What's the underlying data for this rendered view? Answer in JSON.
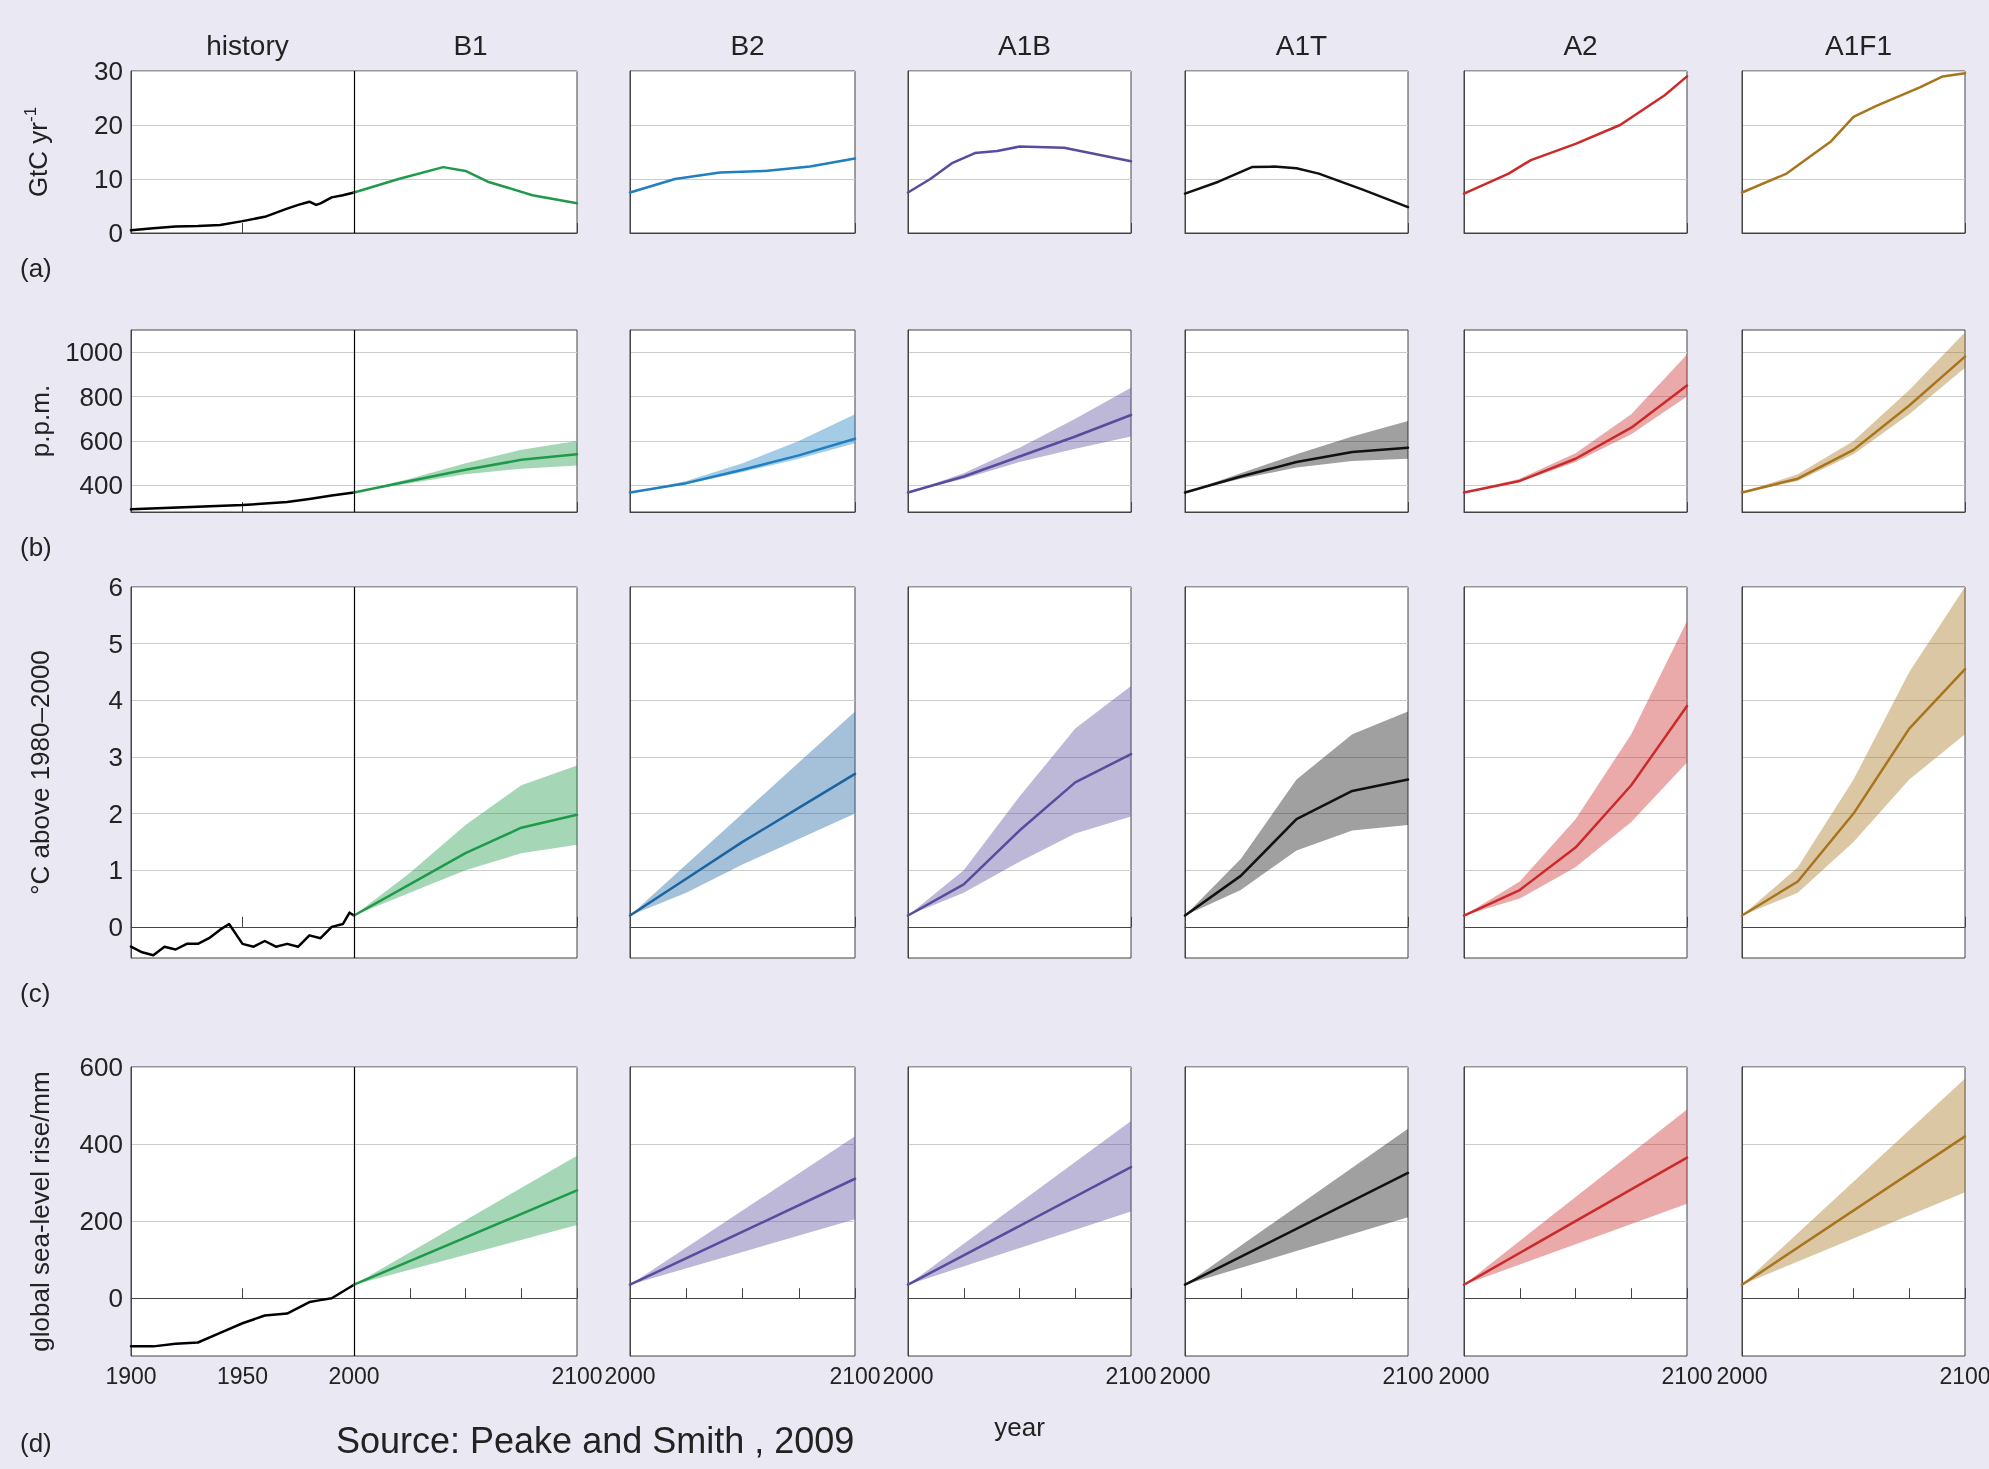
{
  "chart_data": [
    {
      "type": "line",
      "title": "history",
      "subtitle": "B1",
      "ylabel": "GtC yr$^{-1}$",
      "annotations": [
        "(a)"
      ],
      "xlim": [
        1900,
        2100
      ],
      "xticks": [
        1900,
        1950,
        2000,
        2100
      ],
      "ylim": [
        0,
        30
      ],
      "yticks": [
        0,
        10,
        20,
        30
      ],
      "tick_labels": "y",
      "grid": "y",
      "ref_lines": [
        {
          "axis": "x",
          "value": 2000,
          "color": "#000000"
        }
      ],
      "series": [
        {
          "color": "#000000",
          "x": [
            1900,
            1910,
            1920,
            1930,
            1940,
            1950,
            1960,
            1970,
            1975,
            1980,
            1983,
            1985,
            1990,
            1995,
            2000
          ],
          "values": [
            0.5,
            0.9,
            1.2,
            1.3,
            1.5,
            2.2,
            3,
            4.5,
            5.2,
            5.8,
            5.2,
            5.5,
            6.6,
            7,
            7.5
          ]
        },
        {
          "color": "#1f9a4a",
          "x": [
            2000,
            2020,
            2040,
            2050,
            2060,
            2080,
            2100
          ],
          "values": [
            7.5,
            10,
            12.2,
            11.5,
            9.5,
            7,
            5.5
          ]
        }
      ]
    },
    {
      "type": "line",
      "title": "B2",
      "xlim": [
        2000,
        2100
      ],
      "xticks": [
        2000,
        2100
      ],
      "ylim": [
        0,
        30
      ],
      "yticks": [
        0,
        10,
        20,
        30
      ],
      "tick_labels": false,
      "grid": "y",
      "series": [
        {
          "color": "#1f7fc0",
          "x": [
            2000,
            2020,
            2040,
            2060,
            2080,
            2100
          ],
          "values": [
            7.5,
            10,
            11.2,
            11.5,
            12.3,
            13.8
          ]
        }
      ]
    },
    {
      "type": "line",
      "title": "A1B",
      "xlim": [
        2000,
        2100
      ],
      "xticks": [
        2000,
        2100
      ],
      "ylim": [
        0,
        30
      ],
      "yticks": [
        0,
        10,
        20,
        30
      ],
      "tick_labels": false,
      "grid": "y",
      "series": [
        {
          "color": "#5b4a9e",
          "x": [
            2000,
            2010,
            2020,
            2030,
            2040,
            2050,
            2070,
            2100
          ],
          "values": [
            7.5,
            10,
            13,
            14.8,
            15.2,
            16,
            15.8,
            13.3
          ]
        }
      ]
    },
    {
      "type": "line",
      "title": "A1T",
      "xlim": [
        2000,
        2100
      ],
      "xticks": [
        2000,
        2100
      ],
      "ylim": [
        0,
        30
      ],
      "yticks": [
        0,
        10,
        20,
        30
      ],
      "tick_labels": false,
      "grid": "y",
      "series": [
        {
          "color": "#111111",
          "x": [
            2000,
            2015,
            2030,
            2040,
            2050,
            2060,
            2080,
            2100
          ],
          "values": [
            7.3,
            9.5,
            12.2,
            12.3,
            12,
            11,
            8,
            4.8
          ]
        }
      ]
    },
    {
      "type": "line",
      "title": "A2",
      "xlim": [
        2000,
        2100
      ],
      "xticks": [
        2000,
        2100
      ],
      "ylim": [
        0,
        30
      ],
      "yticks": [
        0,
        10,
        20,
        30
      ],
      "tick_labels": false,
      "grid": "y",
      "series": [
        {
          "color": "#cc2a2a",
          "x": [
            2000,
            2020,
            2030,
            2050,
            2070,
            2090,
            2100
          ],
          "values": [
            7.3,
            11,
            13.5,
            16.5,
            20,
            25.5,
            29
          ]
        }
      ]
    },
    {
      "type": "line",
      "title": "A1F1",
      "xlim": [
        2000,
        2100
      ],
      "xticks": [
        2000,
        2100
      ],
      "ylim": [
        0,
        30
      ],
      "yticks": [
        0,
        10,
        20,
        30
      ],
      "tick_labels": false,
      "grid": "y",
      "series": [
        {
          "color": "#a8741e",
          "x": [
            2000,
            2020,
            2040,
            2050,
            2060,
            2080,
            2090,
            2100
          ],
          "values": [
            7.5,
            11,
            17,
            21.5,
            23.5,
            27,
            29,
            29.6
          ]
        }
      ]
    },
    {
      "type": "line",
      "ylabel": "p.p.m.",
      "annotations": [
        "(b)"
      ],
      "xlim": [
        1900,
        2100
      ],
      "xticks": [
        1900,
        1950,
        2000,
        2100
      ],
      "ylim": [
        280,
        1100
      ],
      "yticks": [
        400,
        600,
        800,
        1000
      ],
      "tick_labels": "y",
      "grid": "y",
      "ref_lines": [
        {
          "axis": "x",
          "value": 2000,
          "color": "#000000"
        }
      ],
      "series": [
        {
          "color": "#000000",
          "x": [
            1900,
            1950,
            1970,
            1980,
            1990,
            2000
          ],
          "values": [
            292,
            311,
            325,
            339,
            354,
            368
          ]
        },
        {
          "color": "#1f9a4a",
          "x": [
            2000,
            2025,
            2050,
            2075,
            2100
          ],
          "values": [
            368,
            420,
            470,
            515,
            540
          ],
          "lower": [
            368,
            410,
            450,
            475,
            490
          ],
          "upper": [
            368,
            430,
            500,
            560,
            600
          ]
        }
      ]
    },
    {
      "type": "line",
      "xlim": [
        2000,
        2100
      ],
      "xticks": [
        2000,
        2100
      ],
      "ylim": [
        280,
        1100
      ],
      "yticks": [
        400,
        600,
        800,
        1000
      ],
      "tick_labels": false,
      "grid": "y",
      "series": [
        {
          "color": "#1f7fc0",
          "x": [
            2000,
            2025,
            2050,
            2075,
            2100
          ],
          "values": [
            368,
            410,
            470,
            535,
            610
          ],
          "lower": [
            368,
            405,
            460,
            520,
            590
          ],
          "upper": [
            368,
            420,
            500,
            600,
            720
          ]
        }
      ]
    },
    {
      "type": "line",
      "xlim": [
        2000,
        2100
      ],
      "xticks": [
        2000,
        2100
      ],
      "ylim": [
        280,
        1100
      ],
      "yticks": [
        400,
        600,
        800,
        1000
      ],
      "tick_labels": false,
      "grid": "y",
      "series": [
        {
          "color": "#5b4a9e",
          "x": [
            2000,
            2025,
            2050,
            2075,
            2100
          ],
          "values": [
            368,
            440,
            530,
            620,
            717
          ],
          "lower": [
            368,
            430,
            505,
            565,
            620
          ],
          "upper": [
            368,
            455,
            570,
            700,
            840
          ]
        }
      ]
    },
    {
      "type": "line",
      "xlim": [
        2000,
        2100
      ],
      "xticks": [
        2000,
        2100
      ],
      "ylim": [
        280,
        1100
      ],
      "yticks": [
        400,
        600,
        800,
        1000
      ],
      "tick_labels": false,
      "grid": "y",
      "series": [
        {
          "color": "#111111",
          "x": [
            2000,
            2025,
            2050,
            2075,
            2100
          ],
          "values": [
            368,
            440,
            505,
            550,
            570
          ],
          "lower": [
            368,
            430,
            480,
            510,
            520
          ],
          "upper": [
            368,
            455,
            540,
            620,
            690
          ]
        }
      ]
    },
    {
      "type": "line",
      "xlim": [
        2000,
        2100
      ],
      "xticks": [
        2000,
        2100
      ],
      "ylim": [
        280,
        1100
      ],
      "yticks": [
        400,
        600,
        800,
        1000
      ],
      "tick_labels": false,
      "grid": "y",
      "series": [
        {
          "color": "#cc2a2a",
          "x": [
            2000,
            2025,
            2050,
            2075,
            2100
          ],
          "values": [
            368,
            420,
            520,
            660,
            850
          ],
          "lower": [
            368,
            415,
            505,
            630,
            800
          ],
          "upper": [
            368,
            430,
            545,
            720,
            990
          ]
        }
      ]
    },
    {
      "type": "line",
      "xlim": [
        2000,
        2100
      ],
      "xticks": [
        2000,
        2100
      ],
      "ylim": [
        280,
        1100
      ],
      "yticks": [
        400,
        600,
        800,
        1000
      ],
      "tick_labels": false,
      "grid": "y",
      "series": [
        {
          "color": "#a8741e",
          "x": [
            2000,
            2025,
            2050,
            2075,
            2100
          ],
          "values": [
            368,
            430,
            560,
            760,
            980
          ],
          "lower": [
            368,
            420,
            540,
            720,
            930
          ],
          "upper": [
            368,
            450,
            600,
            830,
            1090
          ]
        }
      ]
    },
    {
      "type": "line",
      "ylabel": "°C above 1980–2000",
      "annotations": [
        "(c)"
      ],
      "xlim": [
        1900,
        2100
      ],
      "xticks": [
        1900,
        1950,
        2000,
        2100
      ],
      "ylim": [
        -0.55,
        6
      ],
      "yticks": [
        0,
        1,
        2,
        3,
        4,
        5,
        6
      ],
      "tick_labels": "y",
      "grid": "y",
      "ref_lines": [
        {
          "axis": "x",
          "value": 2000,
          "color": "#000000"
        }
      ],
      "series": [
        {
          "color": "#000000",
          "x": [
            1900,
            1905,
            1910,
            1915,
            1920,
            1925,
            1930,
            1935,
            1940,
            1944,
            1950,
            1955,
            1960,
            1965,
            1970,
            1975,
            1980,
            1985,
            1990,
            1995,
            1998,
            2000
          ],
          "values": [
            -0.35,
            -0.45,
            -0.5,
            -0.35,
            -0.4,
            -0.3,
            -0.3,
            -0.2,
            -0.05,
            0.05,
            -0.3,
            -0.35,
            -0.25,
            -0.35,
            -0.3,
            -0.35,
            -0.15,
            -0.2,
            0,
            0.05,
            0.25,
            0.2
          ]
        },
        {
          "color": "#1f9a4a",
          "x": [
            2000,
            2025,
            2050,
            2075,
            2100
          ],
          "values": [
            0.2,
            0.75,
            1.3,
            1.75,
            1.98
          ],
          "lower": [
            0.2,
            0.6,
            1.0,
            1.3,
            1.45
          ],
          "upper": [
            0.2,
            0.95,
            1.8,
            2.5,
            2.85
          ]
        }
      ]
    },
    {
      "type": "line",
      "xlim": [
        2000,
        2100
      ],
      "xticks": [
        2000,
        2100
      ],
      "ylim": [
        -0.55,
        6
      ],
      "yticks": [
        0,
        1,
        2,
        3,
        4,
        5,
        6
      ],
      "tick_labels": false,
      "grid": "y",
      "series": [
        {
          "color": "#1b64a0",
          "x": [
            2000,
            2025,
            2050,
            2075,
            2100
          ],
          "values": [
            0.2,
            0.85,
            1.5,
            2.1,
            2.7
          ],
          "lower": [
            0.2,
            0.6,
            1.1,
            1.55,
            2.0
          ],
          "upper": [
            0.2,
            1.1,
            2.0,
            2.9,
            3.8
          ]
        }
      ]
    },
    {
      "type": "line",
      "xlim": [
        2000,
        2100
      ],
      "xticks": [
        2000,
        2100
      ],
      "ylim": [
        -0.55,
        6
      ],
      "yticks": [
        0,
        1,
        2,
        3,
        4,
        5,
        6
      ],
      "tick_labels": false,
      "grid": "y",
      "series": [
        {
          "color": "#5b4a9e",
          "x": [
            2000,
            2025,
            2050,
            2075,
            2100
          ],
          "values": [
            0.2,
            0.75,
            1.7,
            2.55,
            3.05
          ],
          "lower": [
            0.2,
            0.6,
            1.15,
            1.65,
            1.95
          ],
          "upper": [
            0.2,
            1.0,
            2.3,
            3.5,
            4.25
          ]
        }
      ]
    },
    {
      "type": "line",
      "xlim": [
        2000,
        2100
      ],
      "xticks": [
        2000,
        2100
      ],
      "ylim": [
        -0.55,
        6
      ],
      "yticks": [
        0,
        1,
        2,
        3,
        4,
        5,
        6
      ],
      "tick_labels": false,
      "grid": "y",
      "series": [
        {
          "color": "#111111",
          "x": [
            2000,
            2025,
            2050,
            2075,
            2100
          ],
          "values": [
            0.2,
            0.9,
            1.9,
            2.4,
            2.6
          ],
          "lower": [
            0.2,
            0.65,
            1.35,
            1.7,
            1.8
          ],
          "upper": [
            0.2,
            1.2,
            2.6,
            3.4,
            3.8
          ]
        }
      ]
    },
    {
      "type": "line",
      "xlim": [
        2000,
        2100
      ],
      "xticks": [
        2000,
        2100
      ],
      "ylim": [
        -0.55,
        6
      ],
      "yticks": [
        0,
        1,
        2,
        3,
        4,
        5,
        6
      ],
      "tick_labels": false,
      "grid": "y",
      "series": [
        {
          "color": "#cc2a2a",
          "x": [
            2000,
            2025,
            2050,
            2075,
            2100
          ],
          "values": [
            0.2,
            0.65,
            1.4,
            2.5,
            3.9
          ],
          "lower": [
            0.2,
            0.5,
            1.05,
            1.85,
            2.9
          ],
          "upper": [
            0.2,
            0.8,
            1.9,
            3.4,
            5.4
          ]
        }
      ]
    },
    {
      "type": "line",
      "xlim": [
        2000,
        2100
      ],
      "xticks": [
        2000,
        2100
      ],
      "ylim": [
        -0.55,
        6
      ],
      "yticks": [
        0,
        1,
        2,
        3,
        4,
        5,
        6
      ],
      "tick_labels": false,
      "grid": "y",
      "series": [
        {
          "color": "#a8741e",
          "x": [
            2000,
            2025,
            2050,
            2075,
            2100
          ],
          "values": [
            0.2,
            0.8,
            2.0,
            3.5,
            4.55
          ],
          "lower": [
            0.2,
            0.6,
            1.5,
            2.6,
            3.4
          ],
          "upper": [
            0.2,
            1.05,
            2.6,
            4.5,
            6.0
          ]
        }
      ]
    },
    {
      "type": "line",
      "ylabel": "global sea-level rise/mm",
      "annotations": [
        "(d)",
        "Source: Peake and Smith , 2009"
      ],
      "xlim": [
        1900,
        2100
      ],
      "xticks": [
        1900,
        1950,
        2000,
        {
          "value": 2025,
          "label": null
        },
        {
          "value": 2050,
          "label": null
        },
        {
          "value": 2075,
          "label": null
        },
        2100
      ],
      "ylim": [
        -150,
        600
      ],
      "yticks": [
        0,
        200,
        400,
        600
      ],
      "grid": "y",
      "ref_lines": [
        {
          "axis": "x",
          "value": 2000,
          "color": "#000000"
        }
      ],
      "series": [
        {
          "color": "#000000",
          "x": [
            1900,
            1910,
            1920,
            1930,
            1940,
            1950,
            1960,
            1970,
            1980,
            1985,
            1990,
            2000
          ],
          "values": [
            -125,
            -125,
            -118,
            -115,
            -90,
            -65,
            -45,
            -40,
            -10,
            -5,
            0,
            35
          ]
        },
        {
          "color": "#1f9a4a",
          "x": [
            2000,
            2100
          ],
          "values": [
            35,
            280
          ],
          "lower": [
            35,
            190
          ],
          "upper": [
            35,
            370
          ]
        }
      ]
    },
    {
      "type": "line",
      "xlim": [
        2000,
        2100
      ],
      "xticks": [
        2000,
        {
          "value": 2025,
          "label": null
        },
        {
          "value": 2050,
          "label": null
        },
        {
          "value": 2075,
          "label": null
        },
        2100
      ],
      "ylim": [
        -150,
        600
      ],
      "yticks": [
        0,
        200,
        400,
        600
      ],
      "tick_labels": "x",
      "grid": "y",
      "series": [
        {
          "color": "#5b4a9e",
          "x": [
            2000,
            2100
          ],
          "values": [
            35,
            310
          ],
          "lower": [
            35,
            205
          ],
          "upper": [
            35,
            420
          ]
        }
      ]
    },
    {
      "type": "line",
      "xlabel": "year",
      "xlim": [
        2000,
        2100
      ],
      "xticks": [
        2000,
        {
          "value": 2025,
          "label": null
        },
        {
          "value": 2050,
          "label": null
        },
        {
          "value": 2075,
          "label": null
        },
        2100
      ],
      "ylim": [
        -150,
        600
      ],
      "yticks": [
        0,
        200,
        400,
        600
      ],
      "tick_labels": "x",
      "grid": "y",
      "series": [
        {
          "color": "#5b4a9e",
          "x": [
            2000,
            2100
          ],
          "values": [
            35,
            340
          ],
          "lower": [
            35,
            225
          ],
          "upper": [
            35,
            460
          ]
        }
      ]
    },
    {
      "type": "line",
      "xlim": [
        2000,
        2100
      ],
      "xticks": [
        2000,
        {
          "value": 2025,
          "label": null
        },
        {
          "value": 2050,
          "label": null
        },
        {
          "value": 2075,
          "label": null
        },
        2100
      ],
      "ylim": [
        -150,
        600
      ],
      "yticks": [
        0,
        200,
        400,
        600
      ],
      "tick_labels": "x",
      "grid": "y",
      "series": [
        {
          "color": "#111111",
          "x": [
            2000,
            2100
          ],
          "values": [
            35,
            325
          ],
          "lower": [
            35,
            210
          ],
          "upper": [
            35,
            440
          ]
        }
      ]
    },
    {
      "type": "line",
      "xlim": [
        2000,
        2100
      ],
      "xticks": [
        2000,
        {
          "value": 2025,
          "label": null
        },
        {
          "value": 2050,
          "label": null
        },
        {
          "value": 2075,
          "label": null
        },
        2100
      ],
      "ylim": [
        -150,
        600
      ],
      "yticks": [
        0,
        200,
        400,
        600
      ],
      "tick_labels": "x",
      "grid": "y",
      "series": [
        {
          "color": "#cc2a2a",
          "x": [
            2000,
            2100
          ],
          "values": [
            35,
            365
          ],
          "lower": [
            35,
            245
          ],
          "upper": [
            35,
            490
          ]
        }
      ]
    },
    {
      "type": "line",
      "xlim": [
        2000,
        2100
      ],
      "xticks": [
        2000,
        {
          "value": 2025,
          "label": null
        },
        {
          "value": 2050,
          "label": null
        },
        {
          "value": 2075,
          "label": null
        },
        2100
      ],
      "ylim": [
        -150,
        600
      ],
      "yticks": [
        0,
        200,
        400,
        600
      ],
      "tick_labels": "x",
      "grid": "y",
      "series": [
        {
          "color": "#a8741e",
          "x": [
            2000,
            2100
          ],
          "values": [
            35,
            420
          ],
          "lower": [
            35,
            275
          ],
          "upper": [
            35,
            570
          ]
        }
      ]
    }
  ]
}
